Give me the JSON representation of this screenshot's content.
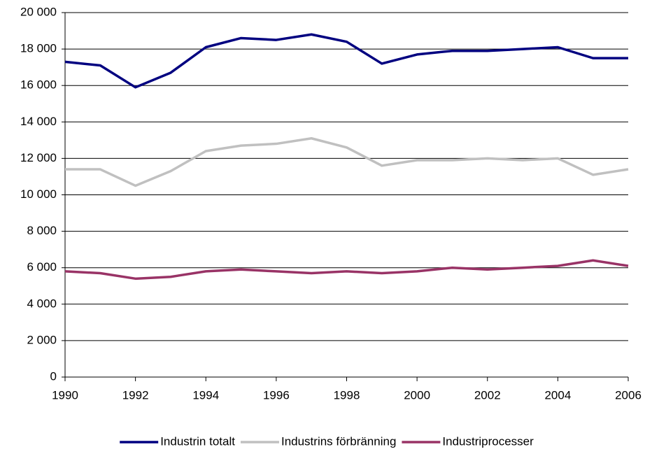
{
  "chart_data": {
    "type": "line",
    "x": [
      1990,
      1991,
      1992,
      1993,
      1994,
      1995,
      1996,
      1997,
      1998,
      1999,
      2000,
      2001,
      2002,
      2003,
      2004,
      2005,
      2006
    ],
    "xlim": [
      1990,
      2006
    ],
    "xticks": [
      1990,
      1992,
      1994,
      1996,
      1998,
      2000,
      2002,
      2004,
      2006
    ],
    "ylim": [
      0,
      20000
    ],
    "yticks": [
      0,
      {
        "value": 2000,
        "label": "2 000"
      },
      {
        "value": 4000,
        "label": "4 000"
      },
      {
        "value": 6000,
        "label": "6 000"
      },
      {
        "value": 8000,
        "label": "8 000"
      },
      {
        "value": 10000,
        "label": "10 000"
      },
      {
        "value": 12000,
        "label": "12 000"
      },
      {
        "value": 14000,
        "label": "14 000"
      },
      {
        "value": 16000,
        "label": "16 000"
      },
      {
        "value": 18000,
        "label": "18 000"
      },
      {
        "value": 20000,
        "label": "20 000"
      }
    ],
    "grid": true,
    "legend": "bottom",
    "series": [
      {
        "name": "Industrin totalt",
        "color": "#000080",
        "values": [
          17300,
          17100,
          15900,
          16700,
          18100,
          18600,
          18500,
          18800,
          18400,
          17200,
          17700,
          17900,
          17900,
          18000,
          18100,
          17500,
          17500
        ]
      },
      {
        "name": "Industrins förbränning",
        "color": "#c0c0c0",
        "values": [
          11400,
          11400,
          10500,
          11300,
          12400,
          12700,
          12800,
          13100,
          12600,
          11600,
          11900,
          11900,
          12000,
          11900,
          12000,
          11100,
          11400
        ]
      },
      {
        "name": "Industriprocesser",
        "color": "#993366",
        "values": [
          5800,
          5700,
          5400,
          5500,
          5800,
          5900,
          5800,
          5700,
          5800,
          5700,
          5800,
          6000,
          5900,
          6000,
          6100,
          6400,
          6100
        ]
      }
    ]
  }
}
